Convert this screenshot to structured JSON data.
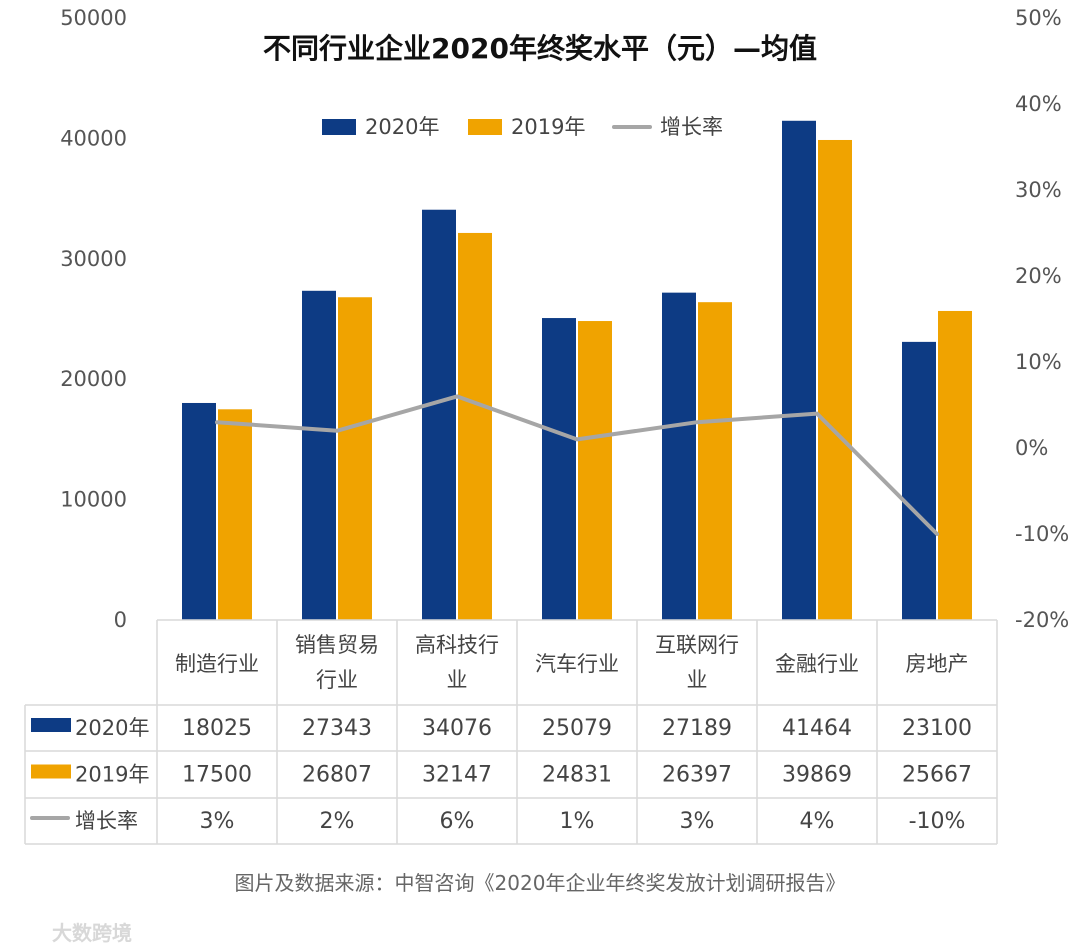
{
  "chart_data": {
    "type": "bar",
    "title": "不同行业企业2020年终奖水平（元）—均值",
    "categories": [
      "制造行业",
      "销售贸易行业",
      "高科技行业",
      "汽车行业",
      "互联网行业",
      "金融行业",
      "房地产"
    ],
    "category_lines": [
      [
        "制造行业"
      ],
      [
        "销售贸易",
        "行业"
      ],
      [
        "高科技行",
        "业"
      ],
      [
        "汽车行业"
      ],
      [
        "互联网行",
        "业"
      ],
      [
        "金融行业"
      ],
      [
        "房地产"
      ]
    ],
    "series": [
      {
        "name": "2020年",
        "type": "bar",
        "color": "#0d3b84",
        "values": [
          18025,
          27343,
          34076,
          25079,
          27189,
          41464,
          23100
        ],
        "labels": [
          "18025",
          "27343",
          "34076",
          "25079",
          "27189",
          "41464",
          "23100"
        ]
      },
      {
        "name": "2019年",
        "type": "bar",
        "color": "#f0a300",
        "values": [
          17500,
          26807,
          32147,
          24831,
          26397,
          39869,
          25667
        ],
        "labels": [
          "17500",
          "26807",
          "32147",
          "24831",
          "26397",
          "39869",
          "25667"
        ]
      },
      {
        "name": "增长率",
        "type": "line",
        "axis": "secondary",
        "color": "#a6a6a6",
        "values": [
          3,
          2,
          6,
          1,
          3,
          4,
          -10
        ],
        "labels": [
          "3%",
          "2%",
          "6%",
          "1%",
          "3%",
          "4%",
          "-10%"
        ]
      }
    ],
    "primary_axis": {
      "min": 0,
      "max": 50000,
      "ticks": [
        0,
        10000,
        20000,
        30000,
        40000,
        50000
      ],
      "tick_labels": [
        "0",
        "10000",
        "20000",
        "30000",
        "40000",
        "50000"
      ]
    },
    "secondary_axis": {
      "min": -20,
      "max": 50,
      "ticks": [
        -20,
        -10,
        0,
        10,
        20,
        30,
        40,
        50
      ],
      "tick_labels": [
        "-20%",
        "-10%",
        "0%",
        "10%",
        "20%",
        "30%",
        "40%",
        "50%"
      ]
    },
    "legend": {
      "position": "top-center",
      "entries": [
        "2020年",
        "2019年",
        "增长率"
      ]
    },
    "data_table": true,
    "source": "图片及数据来源：中智咨询《2020年企业年终奖发放计划调研报告》"
  },
  "watermark": "大数跨境"
}
